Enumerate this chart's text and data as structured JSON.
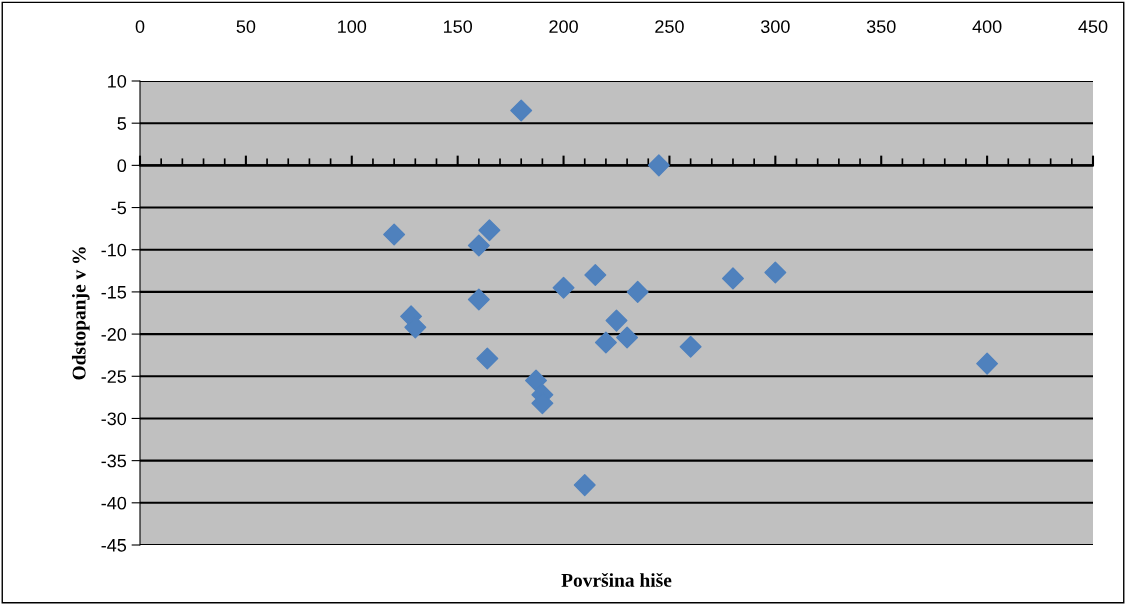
{
  "chart_data": {
    "type": "scatter",
    "xlabel": "Površina hiše",
    "ylabel": "Odstopanje v %",
    "x": [
      120,
      128,
      130,
      160,
      165,
      160,
      164,
      180,
      210,
      187,
      190,
      190,
      200,
      215,
      225,
      220,
      230,
      235,
      245,
      260,
      280,
      300,
      400
    ],
    "series": [
      {
        "color": "#4f81bd",
        "values": [
          -8.2,
          -17.9,
          -19.2,
          -9.5,
          -7.7,
          -15.9,
          -22.9,
          6.5,
          -37.9,
          -25.5,
          -27.2,
          -28.2,
          -14.5,
          -13.0,
          -18.4,
          -21.0,
          -20.4,
          -15.0,
          0.0,
          -21.5,
          -13.4,
          -12.7,
          -23.5
        ]
      }
    ],
    "xlim": [
      0,
      450
    ],
    "xticks": [
      0,
      50,
      100,
      150,
      200,
      250,
      300,
      350,
      400,
      450
    ],
    "ylim": [
      -45,
      10
    ],
    "yticks": [
      -45,
      -40,
      -35,
      -30,
      -25,
      -20,
      -15,
      -10,
      -5,
      0,
      5,
      10
    ],
    "grid": "y",
    "marker": "diamond",
    "legend": false
  }
}
